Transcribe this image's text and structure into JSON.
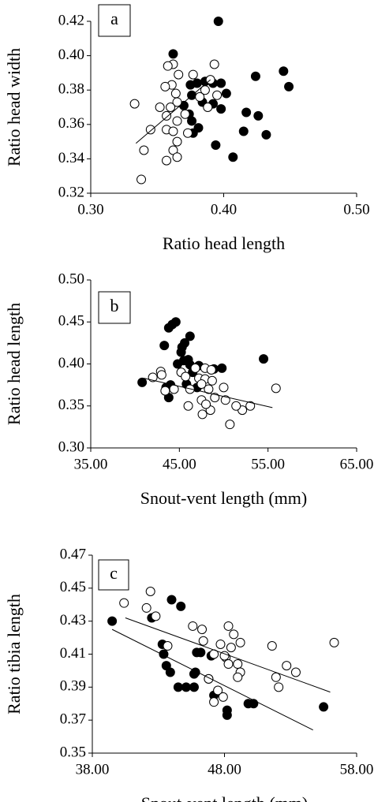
{
  "chart_data": [
    {
      "type": "scatter",
      "label": "a",
      "xlabel": "Ratio head length",
      "ylabel": "Ratio head width",
      "xlim": [
        0.3,
        0.5
      ],
      "ylim": [
        0.32,
        0.42
      ],
      "xticks": [
        {
          "value": 0.3,
          "label": "0.30"
        },
        {
          "value": 0.4,
          "label": "0.40"
        },
        {
          "value": 0.5,
          "label": "0.50"
        }
      ],
      "yticks": [
        0.32,
        0.34,
        0.36,
        0.38,
        {
          "value": 0.4,
          "label": "0.40"
        },
        0.42
      ],
      "series": [
        {
          "fill": "#000000",
          "x": [
            0.396,
            0.362,
            0.445,
            0.424,
            0.449,
            0.38,
            0.386,
            0.375,
            0.392,
            0.398,
            0.402,
            0.376,
            0.392,
            0.37,
            0.384,
            0.398,
            0.374,
            0.417,
            0.426,
            0.381,
            0.377,
            0.415,
            0.432,
            0.376,
            0.394,
            0.407
          ],
          "values": [
            0.42,
            0.401,
            0.391,
            0.388,
            0.382,
            0.384,
            0.385,
            0.383,
            0.384,
            0.384,
            0.378,
            0.377,
            0.372,
            0.371,
            0.373,
            0.369,
            0.366,
            0.367,
            0.365,
            0.358,
            0.355,
            0.356,
            0.354,
            0.362,
            0.348,
            0.341
          ]
        },
        {
          "fill": "#ffffff",
          "x": [
            0.362,
            0.393,
            0.358,
            0.366,
            0.377,
            0.361,
            0.356,
            0.39,
            0.364,
            0.386,
            0.382,
            0.395,
            0.365,
            0.36,
            0.352,
            0.333,
            0.357,
            0.371,
            0.365,
            0.388,
            0.357,
            0.345,
            0.362,
            0.365,
            0.362,
            0.34,
            0.365,
            0.357,
            0.338,
            0.373
          ],
          "values": [
            0.395,
            0.395,
            0.394,
            0.389,
            0.389,
            0.383,
            0.382,
            0.386,
            0.378,
            0.38,
            0.376,
            0.377,
            0.373,
            0.37,
            0.37,
            0.372,
            0.365,
            0.366,
            0.362,
            0.37,
            0.357,
            0.357,
            0.356,
            0.35,
            0.345,
            0.345,
            0.341,
            0.339,
            0.328,
            0.355
          ]
        }
      ],
      "trendlines": [
        {
          "x": [
            0.334,
            0.39
          ],
          "values": [
            0.349,
            0.386
          ]
        }
      ]
    },
    {
      "type": "scatter",
      "label": "b",
      "xlabel": "Snout-vent length (mm)",
      "ylabel": "Ratio head length",
      "xlim": [
        35,
        65
      ],
      "ylim": [
        0.3,
        0.5
      ],
      "xticks": [
        {
          "value": 35,
          "label": "35.00"
        },
        {
          "value": 45,
          "label": "45.00"
        },
        {
          "value": 55,
          "label": "55.00"
        },
        {
          "value": 65,
          "label": "65.00"
        }
      ],
      "yticks": [
        {
          "value": 0.3,
          "label": "0.30"
        },
        0.35,
        {
          "value": 0.4,
          "label": "0.40"
        },
        0.45,
        {
          "value": 0.5,
          "label": "0.50"
        }
      ],
      "series": [
        {
          "fill": "#000000",
          "x": [
            44.2,
            44.6,
            43.8,
            45.6,
            45.3,
            46.2,
            43.3,
            45.2,
            46.0,
            44.8,
            45.5,
            46.2,
            47.2,
            49.8,
            48.9,
            54.5,
            40.8,
            44.0,
            45.8,
            47.0,
            43.5,
            43.8,
            46.5
          ],
          "values": [
            0.447,
            0.45,
            0.443,
            0.425,
            0.42,
            0.433,
            0.422,
            0.414,
            0.405,
            0.4,
            0.404,
            0.399,
            0.398,
            0.395,
            0.394,
            0.406,
            0.378,
            0.375,
            0.376,
            0.372,
            0.372,
            0.36,
            0.39
          ]
        },
        {
          "fill": "#ffffff",
          "x": [
            42.0,
            42.9,
            43.0,
            45.2,
            46.8,
            47.9,
            48.6,
            45.7,
            47.2,
            47.9,
            48.7,
            47.5,
            50.0,
            48.3,
            46.2,
            44.4,
            43.4,
            49.0,
            50.2,
            47.5,
            46.0,
            48.5,
            52.1,
            51.4,
            53.0,
            47.6,
            50.7,
            55.9,
            48.0
          ],
          "values": [
            0.384,
            0.391,
            0.387,
            0.39,
            0.395,
            0.395,
            0.393,
            0.385,
            0.383,
            0.382,
            0.38,
            0.376,
            0.372,
            0.37,
            0.37,
            0.37,
            0.368,
            0.36,
            0.357,
            0.357,
            0.35,
            0.345,
            0.345,
            0.35,
            0.35,
            0.34,
            0.328,
            0.371,
            0.352
          ]
        }
      ],
      "trendlines": [
        {
          "x": [
            41,
            55.5
          ],
          "values": [
            0.383,
            0.348
          ]
        }
      ]
    },
    {
      "type": "scatter",
      "label": "c",
      "xlabel": "Snout-vent length (mm)",
      "ylabel": "Ratio tibia length",
      "xlim": [
        38,
        58
      ],
      "ylim": [
        0.35,
        0.47
      ],
      "xticks": [
        {
          "value": 38,
          "label": "38.00"
        },
        {
          "value": 48,
          "label": "48.00"
        },
        {
          "value": 58,
          "label": "58.00"
        }
      ],
      "yticks": [
        0.35,
        0.37,
        0.39,
        0.41,
        0.43,
        0.45,
        0.47
      ],
      "series": [
        {
          "fill": "#000000",
          "x": [
            39.5,
            42.5,
            44.0,
            44.7,
            43.3,
            43.4,
            43.6,
            43.9,
            44.5,
            45.1,
            45.7,
            45.7,
            45.9,
            46.2,
            46.8,
            47.0,
            47.2,
            48.2,
            48.2,
            49.8,
            50.2,
            55.5,
            45.8
          ],
          "values": [
            0.43,
            0.432,
            0.443,
            0.439,
            0.416,
            0.41,
            0.403,
            0.399,
            0.39,
            0.39,
            0.39,
            0.398,
            0.411,
            0.411,
            0.395,
            0.409,
            0.385,
            0.373,
            0.376,
            0.38,
            0.38,
            0.378,
            0.399
          ]
        },
        {
          "fill": "#ffffff",
          "x": [
            40.4,
            42.4,
            42.1,
            42.8,
            43.7,
            45.6,
            46.3,
            46.4,
            48.7,
            49.2,
            48.3,
            47.7,
            48.5,
            48.1,
            48.3,
            49.0,
            49.2,
            51.6,
            52.7,
            53.4,
            51.9,
            52.1,
            47.2,
            46.8,
            47.5,
            47.9,
            47.2,
            56.3,
            49.0,
            48.0
          ],
          "values": [
            0.441,
            0.448,
            0.438,
            0.433,
            0.415,
            0.427,
            0.425,
            0.418,
            0.422,
            0.417,
            0.427,
            0.416,
            0.414,
            0.408,
            0.404,
            0.404,
            0.399,
            0.415,
            0.403,
            0.399,
            0.396,
            0.39,
            0.41,
            0.395,
            0.388,
            0.384,
            0.381,
            0.417,
            0.396,
            0.409
          ]
        }
      ],
      "trendlines": [
        {
          "x": [
            40.5,
            56
          ],
          "values": [
            0.432,
            0.387
          ]
        },
        {
          "x": [
            39.5,
            54.7
          ],
          "values": [
            0.425,
            0.364
          ]
        }
      ]
    }
  ]
}
